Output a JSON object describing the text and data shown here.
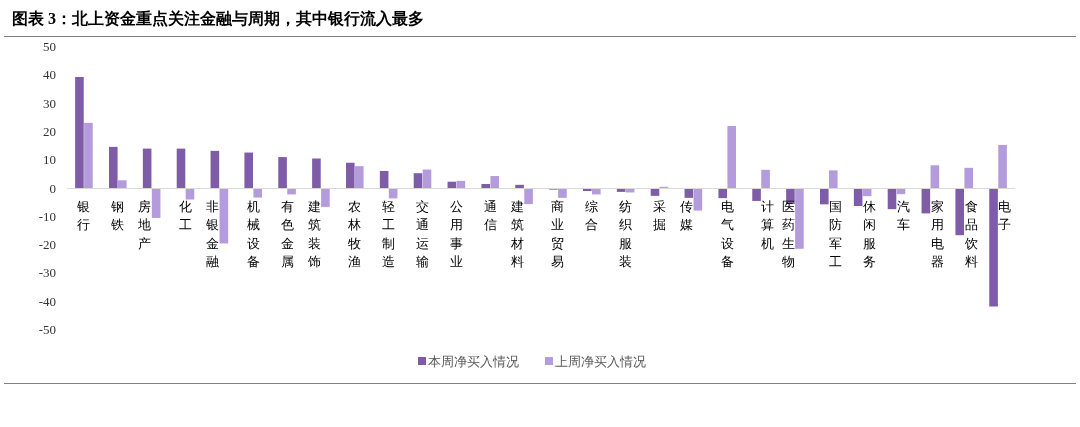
{
  "chart_data": {
    "type": "bar",
    "title": "图表 3：北上资金重点关注金融与周期，其中银行流入最多",
    "categories": [
      "银行",
      "钢铁",
      "房地产",
      "化工",
      "非银金融",
      "机械设备",
      "有色金属",
      "建筑装饰",
      "农林牧渔",
      "轻工制造",
      "交通运输",
      "公用事业",
      "通信",
      "建筑材料",
      "商业贸易",
      "综合",
      "纺织服装",
      "采掘",
      "传媒",
      "电气设备",
      "计算机",
      "医药生物",
      "国防军工",
      "休闲服务",
      "汽车",
      "家用电器",
      "食品饮料",
      "电子"
    ],
    "series": [
      {
        "name": "本周净买入情况",
        "color": "#7e5ca8",
        "values": [
          39.4,
          14.7,
          14.1,
          14.1,
          13.3,
          12.7,
          11.1,
          10.6,
          9.1,
          6.2,
          5.4,
          2.4,
          1.6,
          1.3,
          -0.4,
          -0.9,
          -1.2,
          -2.6,
          -3.3,
          -3.4,
          -4.4,
          -5.5,
          -5.6,
          -6.2,
          -7.3,
          -8.8,
          -16.5,
          -41.7
        ]
      },
      {
        "name": "上周净买入情况",
        "color": "#b49bdc",
        "values": [
          23.2,
          2.9,
          -10.4,
          -3.9,
          -19.4,
          -3.2,
          -2.1,
          -6.5,
          7.9,
          -3.5,
          6.7,
          2.7,
          4.4,
          -5.5,
          -3.3,
          -2.1,
          -1.4,
          0.6,
          -7.8,
          22.1,
          6.6,
          -21.3,
          6.4,
          -2.7,
          -2.0,
          8.2,
          7.3,
          15.4
        ]
      }
    ],
    "ylim": [
      -50,
      50
    ],
    "yticks": [
      -50,
      -40,
      -30,
      -20,
      -10,
      0,
      10,
      20,
      30,
      40,
      50
    ],
    "legend": "bottom"
  }
}
